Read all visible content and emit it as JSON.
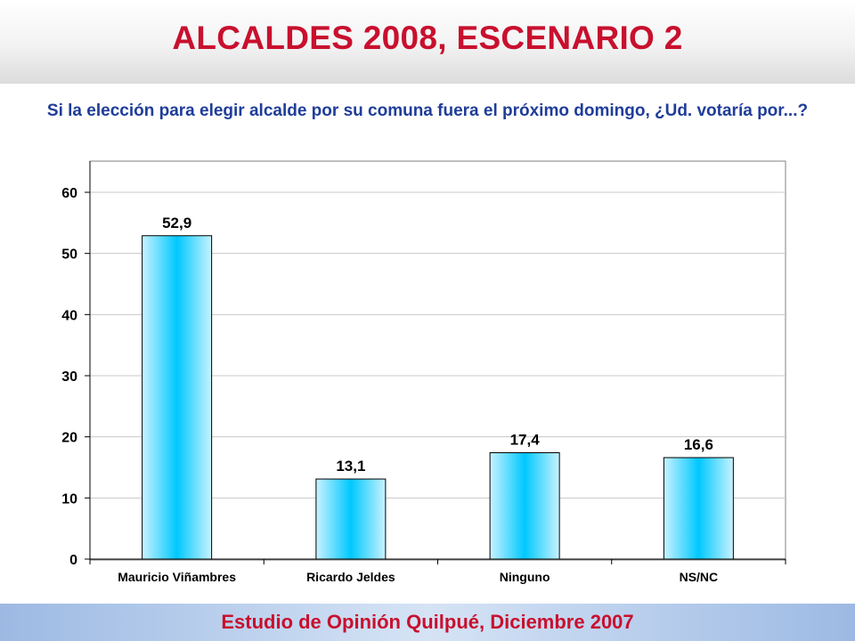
{
  "slide": {
    "title": "ALCALDES 2008, ESCENARIO 2",
    "question": "Si la elección para elegir alcalde por su comuna fuera el próximo domingo, ¿Ud. votaría por...?",
    "footer": "Estudio de Opinión Quilpué, Diciembre 2007"
  },
  "colors": {
    "title": "#c8102e",
    "question": "#1f3d99",
    "bar_center": "#00c8ff",
    "bar_edge": "#c9f2ff"
  },
  "chart_data": {
    "type": "bar",
    "categories": [
      "Mauricio Viñambres",
      "Ricardo Jeldes",
      "Ninguno",
      "NS/NC"
    ],
    "values": [
      52.9,
      13.1,
      17.4,
      16.6
    ],
    "value_labels": [
      "52,9",
      "13,1",
      "17,4",
      "16,6"
    ],
    "ylim": [
      0,
      60
    ],
    "yticks": [
      0,
      10,
      20,
      30,
      40,
      50,
      60
    ],
    "grid": true,
    "legend": "none"
  }
}
